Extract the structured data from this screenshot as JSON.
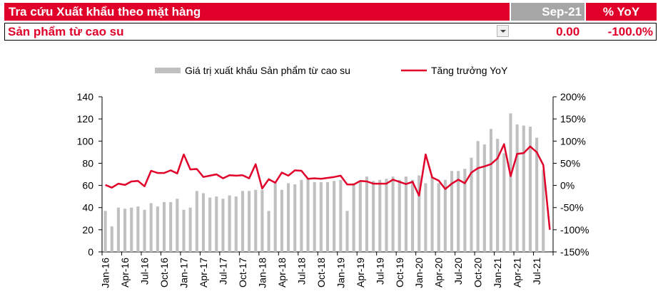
{
  "header": {
    "title": "Tra cứu Xuất khẩu theo mặt hàng",
    "month_label": "Sep-21",
    "yoy_label": "% YoY",
    "product": "Sản phẩm từ cao su",
    "value": "0.00",
    "yoy": "-100.0%",
    "dropdown_icon": "chevron-down-icon"
  },
  "colors": {
    "accent": "#e0002a",
    "bar": "#c0c0c0",
    "month_header_bg": "#a6a6a6"
  },
  "chart_data": {
    "type": "bar+line",
    "legend": [
      "Giá trị xuất khẩu Sản phẩm từ cao su",
      "Tăng trưởng YoY"
    ],
    "legend_position": "top",
    "x_tick_labels": [
      "Jan-16",
      "Apr-16",
      "Jul-16",
      "Oct-16",
      "Jan-17",
      "Apr-17",
      "Jul-17",
      "Oct-17",
      "Jan-18",
      "Apr-18",
      "Jul-18",
      "Oct-18",
      "Jan-19",
      "Apr-19",
      "Jul-19",
      "Oct-19",
      "Jan-20",
      "Apr-20",
      "Jul-20",
      "Oct-20",
      "Jan-21",
      "Apr-21",
      "Jul-21"
    ],
    "y_left": {
      "ylim": [
        0,
        140
      ],
      "ticks": [
        "0",
        "20",
        "40",
        "60",
        "80",
        "100",
        "120",
        "140"
      ]
    },
    "y_right": {
      "ylim": [
        -150,
        200
      ],
      "ticks": [
        "-150%",
        "-100%",
        "-50%",
        "0%",
        "50%",
        "100%",
        "150%",
        "200%"
      ]
    },
    "months": [
      "Jan-16",
      "Feb-16",
      "Mar-16",
      "Apr-16",
      "May-16",
      "Jun-16",
      "Jul-16",
      "Aug-16",
      "Sep-16",
      "Oct-16",
      "Nov-16",
      "Dec-16",
      "Jan-17",
      "Feb-17",
      "Mar-17",
      "Apr-17",
      "May-17",
      "Jun-17",
      "Jul-17",
      "Aug-17",
      "Sep-17",
      "Oct-17",
      "Nov-17",
      "Dec-17",
      "Jan-18",
      "Feb-18",
      "Mar-18",
      "Apr-18",
      "May-18",
      "Jun-18",
      "Jul-18",
      "Aug-18",
      "Sep-18",
      "Oct-18",
      "Nov-18",
      "Dec-18",
      "Jan-19",
      "Feb-19",
      "Mar-19",
      "Apr-19",
      "May-19",
      "Jun-19",
      "Jul-19",
      "Aug-19",
      "Sep-19",
      "Oct-19",
      "Nov-19",
      "Dec-19",
      "Jan-20",
      "Feb-20",
      "Mar-20",
      "Apr-20",
      "May-20",
      "Jun-20",
      "Jul-20",
      "Aug-20",
      "Sep-20",
      "Oct-20",
      "Nov-20",
      "Dec-20",
      "Jan-21",
      "Feb-21",
      "Mar-21",
      "Apr-21",
      "May-21",
      "Jun-21",
      "Jul-21",
      "Aug-21",
      "Sep-21"
    ],
    "series": [
      {
        "name": "Giá trị xuất khẩu Sản phẩm từ cao su",
        "type": "bar",
        "axis": "left",
        "values": [
          37,
          23,
          40,
          39,
          40,
          41,
          38,
          44,
          41,
          45,
          45,
          48,
          38,
          40,
          55,
          53,
          49,
          50,
          48,
          51,
          50,
          55,
          55,
          56,
          56,
          37,
          62,
          56,
          62,
          61,
          65,
          66,
          63,
          63,
          63,
          64,
          65,
          37,
          62,
          64,
          68,
          64,
          65,
          66,
          68,
          65,
          68,
          65,
          69,
          62,
          68,
          62,
          65,
          73,
          73,
          75,
          85,
          100,
          97,
          111,
          102,
          89,
          125,
          115,
          114,
          113,
          103,
          74,
          0
        ],
        "unit": "million USD"
      },
      {
        "name": "Tăng trưởng YoY",
        "type": "line",
        "axis": "right",
        "values": [
          1,
          -5,
          4,
          1,
          9,
          10,
          -2,
          33,
          28,
          28,
          34,
          27,
          70,
          36,
          37,
          19,
          22,
          25,
          16,
          23,
          22,
          23,
          16,
          48,
          -7,
          14,
          6,
          29,
          22,
          34,
          33,
          15,
          16,
          15,
          17,
          19,
          22,
          2,
          2,
          10,
          9,
          4,
          4,
          4,
          13,
          8,
          3,
          8,
          -23,
          70,
          18,
          11,
          -8,
          4,
          13,
          5,
          29,
          39,
          43,
          48,
          61,
          93,
          21,
          71,
          73,
          88,
          75,
          46,
          -100
        ],
        "unit": "%"
      }
    ]
  }
}
